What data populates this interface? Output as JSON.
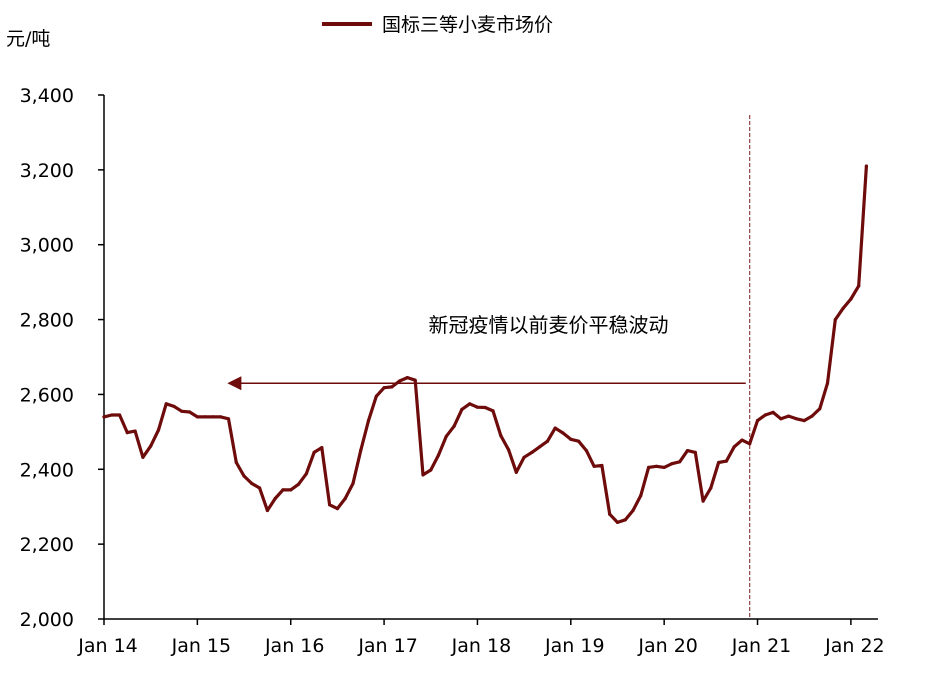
{
  "chart_data": {
    "type": "line",
    "title": "",
    "ylabel": "元/吨",
    "xlabel": "",
    "ylim": [
      2000,
      3400
    ],
    "yticks": [
      2000,
      2200,
      2400,
      2600,
      2800,
      3000,
      3200,
      3400
    ],
    "ytick_labels": [
      "2,000",
      "2,200",
      "2,400",
      "2,600",
      "2,800",
      "3,000",
      "3,200",
      "3,400"
    ],
    "xtick_labels": [
      "Jan 14",
      "Jan 15",
      "Jan 16",
      "Jan 17",
      "Jan 18",
      "Jan 19",
      "Jan 20",
      "Jan 21",
      "Jan 22"
    ],
    "x_start": "2014-01",
    "legend_position": "top-center",
    "grid": false,
    "colors": {
      "series": "#6e0b0b",
      "axis": "#000000",
      "arrow": "#6e0b0b",
      "divider": "#7a1a1a"
    },
    "annotation": {
      "text": "新冠疫情以前麦价平稳波动",
      "arrow_from": "2020-12",
      "arrow_to": "2015-01",
      "arrow_value": 2630,
      "text_value": 2785
    },
    "vline": {
      "date": "2020-12",
      "label": ""
    },
    "series": [
      {
        "name": "国标三等小麦市场价",
        "values": [
          2540,
          2545,
          2545,
          2498,
          2502,
          2432,
          2462,
          2505,
          2575,
          2568,
          2555,
          2553,
          2540,
          2540,
          2540,
          2540,
          2535,
          2418,
          2382,
          2362,
          2350,
          2290,
          2322,
          2345,
          2345,
          2360,
          2388,
          2445,
          2458,
          2305,
          2295,
          2322,
          2362,
          2450,
          2530,
          2595,
          2618,
          2620,
          2636,
          2645,
          2638,
          2385,
          2398,
          2438,
          2488,
          2515,
          2560,
          2575,
          2566,
          2565,
          2556,
          2490,
          2452,
          2392,
          2432,
          2445,
          2460,
          2475,
          2510,
          2497,
          2480,
          2475,
          2450,
          2408,
          2410,
          2280,
          2258,
          2265,
          2290,
          2330,
          2405,
          2408,
          2405,
          2415,
          2420,
          2450,
          2445,
          2315,
          2350,
          2418,
          2422,
          2460,
          2478,
          2468,
          2530,
          2545,
          2552,
          2535,
          2542,
          2535,
          2530,
          2542,
          2562,
          2630,
          2800,
          2830,
          2855,
          2890,
          3210
        ]
      }
    ]
  }
}
